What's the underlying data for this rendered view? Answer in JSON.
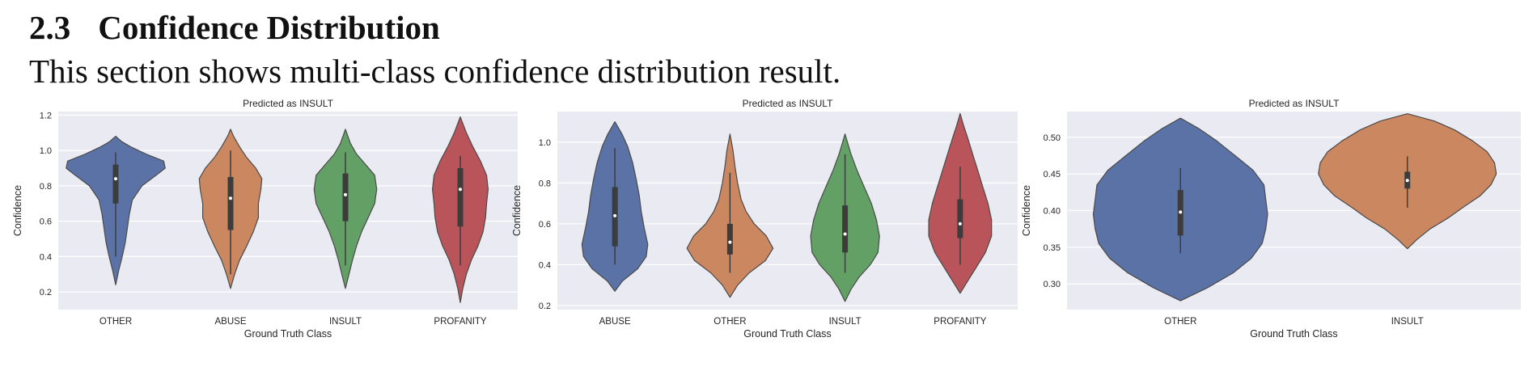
{
  "section": {
    "number": "2.3",
    "title": "Confidence Distribution",
    "intro": "This section shows multi-class confidence distribution result."
  },
  "chart_data": [
    {
      "type": "violin",
      "title": "Predicted as INSULT",
      "xlabel": "Ground Truth Class",
      "ylabel": "Confidence",
      "ylim": [
        0.1,
        1.22
      ],
      "yticks": [
        0.2,
        0.4,
        0.6,
        0.8,
        1.0,
        1.2
      ],
      "grid": true,
      "categories": [
        "OTHER",
        "ABUSE",
        "INSULT",
        "PROFANITY"
      ],
      "colors": [
        "#5a72a5",
        "#cb8760",
        "#62a066",
        "#b8545a"
      ],
      "series": [
        {
          "range": [
            0.24,
            1.08
          ],
          "q1": 0.7,
          "median": 0.84,
          "q3": 0.92,
          "whisker": [
            0.4,
            0.99
          ],
          "profile": [
            [
              0.24,
              0.0
            ],
            [
              0.32,
              0.06
            ],
            [
              0.4,
              0.13
            ],
            [
              0.48,
              0.19
            ],
            [
              0.56,
              0.23
            ],
            [
              0.64,
              0.27
            ],
            [
              0.72,
              0.33
            ],
            [
              0.8,
              0.52
            ],
            [
              0.86,
              0.8
            ],
            [
              0.9,
              0.98
            ],
            [
              0.94,
              0.95
            ],
            [
              0.98,
              0.6
            ],
            [
              1.02,
              0.3
            ],
            [
              1.05,
              0.12
            ],
            [
              1.08,
              0.0
            ]
          ]
        },
        {
          "range": [
            0.22,
            1.12
          ],
          "q1": 0.55,
          "median": 0.73,
          "q3": 0.85,
          "whisker": [
            0.3,
            1.0
          ],
          "profile": [
            [
              0.22,
              0.0
            ],
            [
              0.3,
              0.08
            ],
            [
              0.38,
              0.18
            ],
            [
              0.46,
              0.32
            ],
            [
              0.54,
              0.45
            ],
            [
              0.62,
              0.55
            ],
            [
              0.7,
              0.55
            ],
            [
              0.78,
              0.6
            ],
            [
              0.84,
              0.62
            ],
            [
              0.9,
              0.5
            ],
            [
              0.96,
              0.32
            ],
            [
              1.02,
              0.18
            ],
            [
              1.08,
              0.06
            ],
            [
              1.12,
              0.0
            ]
          ]
        },
        {
          "range": [
            0.22,
            1.12
          ],
          "q1": 0.6,
          "median": 0.75,
          "q3": 0.87,
          "whisker": [
            0.35,
            0.99
          ],
          "profile": [
            [
              0.22,
              0.0
            ],
            [
              0.3,
              0.07
            ],
            [
              0.38,
              0.14
            ],
            [
              0.46,
              0.22
            ],
            [
              0.54,
              0.32
            ],
            [
              0.62,
              0.45
            ],
            [
              0.7,
              0.58
            ],
            [
              0.78,
              0.62
            ],
            [
              0.86,
              0.58
            ],
            [
              0.92,
              0.4
            ],
            [
              0.98,
              0.22
            ],
            [
              1.04,
              0.1
            ],
            [
              1.12,
              0.0
            ]
          ]
        },
        {
          "range": [
            0.14,
            1.19
          ],
          "q1": 0.57,
          "median": 0.78,
          "q3": 0.9,
          "whisker": [
            0.35,
            0.97
          ],
          "profile": [
            [
              0.14,
              0.0
            ],
            [
              0.22,
              0.05
            ],
            [
              0.3,
              0.12
            ],
            [
              0.38,
              0.22
            ],
            [
              0.46,
              0.35
            ],
            [
              0.54,
              0.45
            ],
            [
              0.62,
              0.5
            ],
            [
              0.7,
              0.52
            ],
            [
              0.78,
              0.55
            ],
            [
              0.86,
              0.52
            ],
            [
              0.94,
              0.4
            ],
            [
              1.02,
              0.25
            ],
            [
              1.1,
              0.12
            ],
            [
              1.19,
              0.0
            ]
          ]
        }
      ]
    },
    {
      "type": "violin",
      "title": "Predicted as INSULT",
      "xlabel": "Ground Truth Class",
      "ylabel": "Confidence",
      "ylim": [
        0.18,
        1.15
      ],
      "yticks": [
        0.2,
        0.4,
        0.6,
        0.8,
        1.0
      ],
      "grid": true,
      "categories": [
        "ABUSE",
        "OTHER",
        "INSULT",
        "PROFANITY"
      ],
      "colors": [
        "#5a72a5",
        "#cb8760",
        "#62a066",
        "#b8545a"
      ],
      "series": [
        {
          "range": [
            0.27,
            1.1
          ],
          "q1": 0.49,
          "median": 0.64,
          "q3": 0.78,
          "whisker": [
            0.4,
            0.97
          ],
          "profile": [
            [
              0.27,
              0.0
            ],
            [
              0.32,
              0.15
            ],
            [
              0.38,
              0.45
            ],
            [
              0.44,
              0.62
            ],
            [
              0.5,
              0.65
            ],
            [
              0.58,
              0.58
            ],
            [
              0.66,
              0.52
            ],
            [
              0.74,
              0.48
            ],
            [
              0.82,
              0.42
            ],
            [
              0.9,
              0.35
            ],
            [
              0.98,
              0.25
            ],
            [
              1.04,
              0.14
            ],
            [
              1.1,
              0.0
            ]
          ]
        },
        {
          "range": [
            0.24,
            1.04
          ],
          "q1": 0.45,
          "median": 0.51,
          "q3": 0.6,
          "whisker": [
            0.36,
            0.85
          ],
          "profile": [
            [
              0.24,
              0.0
            ],
            [
              0.3,
              0.15
            ],
            [
              0.36,
              0.38
            ],
            [
              0.42,
              0.7
            ],
            [
              0.48,
              0.85
            ],
            [
              0.54,
              0.72
            ],
            [
              0.6,
              0.48
            ],
            [
              0.66,
              0.32
            ],
            [
              0.72,
              0.22
            ],
            [
              0.8,
              0.15
            ],
            [
              0.88,
              0.1
            ],
            [
              0.96,
              0.06
            ],
            [
              1.04,
              0.0
            ]
          ]
        },
        {
          "range": [
            0.22,
            1.04
          ],
          "q1": 0.46,
          "median": 0.55,
          "q3": 0.69,
          "whisker": [
            0.36,
            0.94
          ],
          "profile": [
            [
              0.22,
              0.0
            ],
            [
              0.28,
              0.12
            ],
            [
              0.34,
              0.28
            ],
            [
              0.4,
              0.5
            ],
            [
              0.46,
              0.65
            ],
            [
              0.54,
              0.68
            ],
            [
              0.62,
              0.62
            ],
            [
              0.7,
              0.52
            ],
            [
              0.78,
              0.38
            ],
            [
              0.86,
              0.24
            ],
            [
              0.94,
              0.12
            ],
            [
              1.04,
              0.0
            ]
          ]
        },
        {
          "range": [
            0.26,
            1.14
          ],
          "q1": 0.53,
          "median": 0.6,
          "q3": 0.72,
          "whisker": [
            0.4,
            0.88
          ],
          "profile": [
            [
              0.26,
              0.0
            ],
            [
              0.32,
              0.15
            ],
            [
              0.38,
              0.3
            ],
            [
              0.46,
              0.5
            ],
            [
              0.54,
              0.62
            ],
            [
              0.62,
              0.62
            ],
            [
              0.7,
              0.55
            ],
            [
              0.78,
              0.45
            ],
            [
              0.86,
              0.35
            ],
            [
              0.94,
              0.25
            ],
            [
              1.02,
              0.15
            ],
            [
              1.08,
              0.07
            ],
            [
              1.14,
              0.0
            ]
          ]
        }
      ]
    },
    {
      "type": "violin",
      "title": "Predicted as INSULT",
      "xlabel": "Ground Truth Class",
      "ylabel": "Confidence",
      "ylim": [
        0.265,
        0.535
      ],
      "yticks": [
        0.3,
        0.35,
        0.4,
        0.45,
        0.5
      ],
      "ytick_labels": [
        "0.30",
        "0.35",
        "0.40",
        "0.45",
        "0.50"
      ],
      "grid": true,
      "categories": [
        "OTHER",
        "INSULT"
      ],
      "colors": [
        "#5a72a5",
        "#cb8760"
      ],
      "series": [
        {
          "range": [
            0.277,
            0.526
          ],
          "q1": 0.366,
          "median": 0.398,
          "q3": 0.428,
          "whisker": [
            0.342,
            0.458
          ],
          "profile": [
            [
              0.277,
              0.0
            ],
            [
              0.295,
              0.3
            ],
            [
              0.315,
              0.58
            ],
            [
              0.335,
              0.78
            ],
            [
              0.355,
              0.9
            ],
            [
              0.375,
              0.94
            ],
            [
              0.395,
              0.96
            ],
            [
              0.415,
              0.94
            ],
            [
              0.435,
              0.92
            ],
            [
              0.455,
              0.8
            ],
            [
              0.475,
              0.6
            ],
            [
              0.495,
              0.4
            ],
            [
              0.512,
              0.2
            ],
            [
              0.526,
              0.0
            ]
          ]
        },
        {
          "range": [
            0.348,
            0.532
          ],
          "q1": 0.43,
          "median": 0.441,
          "q3": 0.453,
          "whisker": [
            0.404,
            0.474
          ],
          "profile": [
            [
              0.348,
              0.0
            ],
            [
              0.36,
              0.1
            ],
            [
              0.375,
              0.25
            ],
            [
              0.39,
              0.45
            ],
            [
              0.405,
              0.62
            ],
            [
              0.42,
              0.8
            ],
            [
              0.435,
              0.92
            ],
            [
              0.45,
              0.98
            ],
            [
              0.465,
              0.96
            ],
            [
              0.48,
              0.88
            ],
            [
              0.495,
              0.72
            ],
            [
              0.51,
              0.52
            ],
            [
              0.522,
              0.3
            ],
            [
              0.532,
              0.0
            ]
          ]
        }
      ]
    }
  ]
}
